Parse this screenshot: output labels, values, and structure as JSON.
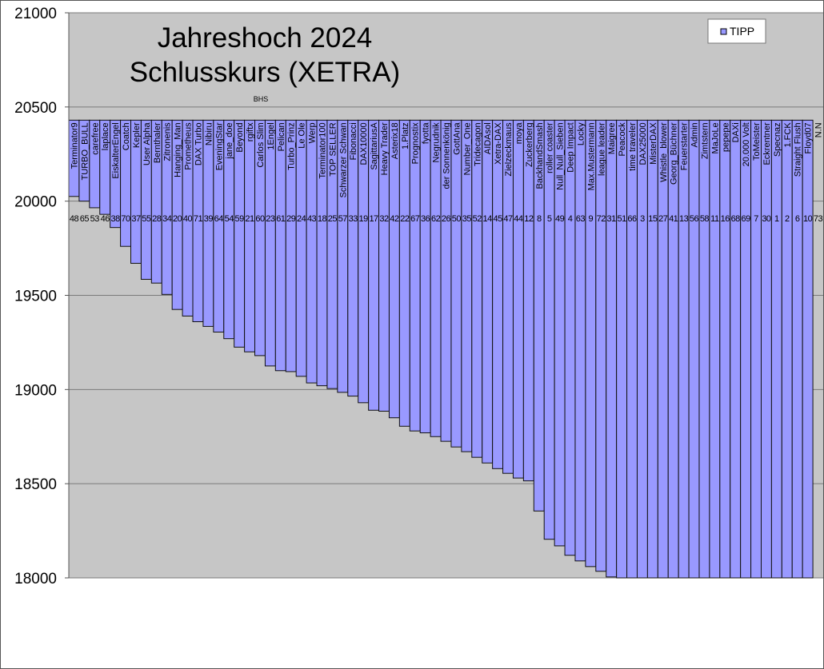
{
  "chart_data": {
    "type": "bar",
    "title": [
      "Jahreshoch 2024",
      "Schlusskurs (XETRA)"
    ],
    "annotation": "BHS",
    "legend": {
      "entries": [
        "TIPP"
      ],
      "placement": "top-right"
    },
    "series": [
      {
        "name": "TIPP",
        "color": "#9999ff"
      }
    ],
    "ylim": [
      18000,
      21000
    ],
    "yticks": [
      18000,
      18500,
      19000,
      19500,
      20000,
      20500,
      21000
    ],
    "ytick_labels": [
      "18000",
      "18500",
      "19000",
      "19500",
      "20000",
      "20500",
      "21000"
    ],
    "axis_crossing": 20430,
    "grid": true,
    "colors": {
      "plot_bg": "#c6c6c6",
      "bar": "#9999ff",
      "grid": "#7a7a7a"
    },
    "categories": [
      "Terminator9",
      "TURBO_BULL",
      "carefree",
      "laplace",
      "EiskalterEngel",
      "Coatch",
      "Kepler",
      "User Alpha",
      "Bernthaler",
      "Zitronenis",
      "Hanging_Man",
      "Prometheus",
      "DAX Turbo",
      "Nibiru",
      "EveningStar",
      "jane_doe",
      "Beyond",
      "rgiftx",
      "Carlos Slim",
      "1Engel",
      "Pelican",
      "Turbo_Prinz",
      "Le Ole",
      "Werp",
      "Terminator100",
      "TOP SELLER",
      "Schwarzer Schwan",
      "Fibonacci",
      "DAX10000",
      "SagittariusA",
      "Heavy Trader",
      "Asterix18",
      "1.Platz",
      "Prognostix",
      "fyotta",
      "Negrudnik",
      "der Sonnenkönig",
      "GottAna",
      "Number_One",
      "Tridecagon",
      "AIDAsol",
      "Xetra-DAX",
      "Zielzeckmaus",
      "moya",
      "Zuckerberg",
      "BackhandSmash",
      "roller coaster",
      "Null_Null_Sieben",
      "Deep Impact",
      "Locky",
      "Max.Mustermann",
      "league leader",
      "Maigree",
      "Peacock",
      "time traveler",
      "DAX25000",
      "MisterDAX",
      "Whistle_blower",
      "Georg_Büchner",
      "Feuerstarter",
      "Admin",
      "Zimtstern",
      "MaJoLe",
      "pepepe",
      "DAXi",
      "20.000 Volt",
      "ToMeister",
      "Eckrentner",
      "Specnaz",
      "1.FCK",
      "Straight Flush",
      "Floyd07",
      "N.N"
    ],
    "numbers": [
      "48",
      "65",
      "53",
      "46",
      "38",
      "70",
      "37",
      "55",
      "28",
      "34",
      "20",
      "40",
      "71",
      "39",
      "64",
      "54",
      "59",
      "21",
      "60",
      "23",
      "61",
      "29",
      "24",
      "43",
      "18",
      "25",
      "57",
      "33",
      "19",
      "17",
      "32",
      "42",
      "22",
      "67",
      "36",
      "62",
      "26",
      "50",
      "35",
      "52",
      "14",
      "45",
      "47",
      "44",
      "12",
      "8",
      "5",
      "49",
      "4",
      "63",
      "9",
      "72",
      "31",
      "51",
      "66",
      "3",
      "15",
      "27",
      "41",
      "13",
      "56",
      "58",
      "11",
      "16",
      "68",
      "69",
      "7",
      "30",
      "1",
      "2",
      "6",
      "10",
      "73"
    ],
    "values": [
      20025,
      20000,
      19965,
      19930,
      19860,
      19760,
      19670,
      19585,
      19565,
      19505,
      19425,
      19390,
      19360,
      19335,
      19305,
      19270,
      19225,
      19200,
      19180,
      19125,
      19100,
      19095,
      19070,
      19035,
      19020,
      19005,
      18985,
      18965,
      18930,
      18890,
      18885,
      18850,
      18805,
      18780,
      18770,
      18750,
      18725,
      18695,
      18670,
      18640,
      18610,
      18580,
      18555,
      18530,
      18515,
      18355,
      18205,
      18170,
      18120,
      18090,
      18060,
      18035,
      18005,
      18000,
      18000,
      18000,
      18000,
      18000,
      18000,
      18000,
      18000,
      18000,
      18000,
      18000,
      18000,
      18000,
      18000,
      18000,
      18000,
      18000,
      18000,
      18000,
      null
    ]
  }
}
